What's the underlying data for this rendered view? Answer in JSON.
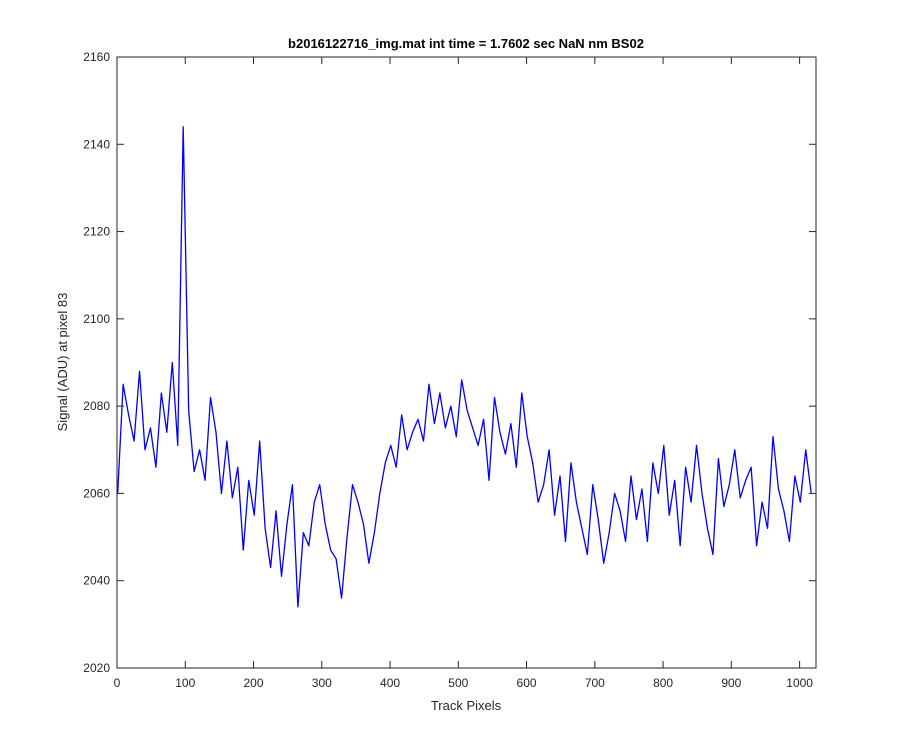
{
  "chart_data": {
    "type": "line",
    "title": "b2016122716_img.mat int time = 1.7602 sec  NaN nm BS02",
    "xlabel": "Track Pixels",
    "ylabel": "Signal (ADU) at pixel 83",
    "xlim": [
      0,
      1024
    ],
    "ylim": [
      2020,
      2160
    ],
    "x_ticks": [
      0,
      100,
      200,
      300,
      400,
      500,
      600,
      700,
      800,
      900,
      1000
    ],
    "y_ticks": [
      2020,
      2040,
      2060,
      2080,
      2100,
      2120,
      2140,
      2160
    ],
    "grid": false,
    "line_color": "#0000ff",
    "series": [
      {
        "x_start": 1,
        "x_step": 8,
        "values": [
          2060,
          2085,
          2078,
          2072,
          2088,
          2070,
          2075,
          2066,
          2083,
          2074,
          2090,
          2071,
          2144,
          2079,
          2065,
          2070,
          2063,
          2082,
          2074,
          2060,
          2072,
          2059,
          2066,
          2047,
          2063,
          2055,
          2072,
          2052,
          2043,
          2056,
          2041,
          2053,
          2062,
          2034,
          2051,
          2048,
          2058,
          2062,
          2053,
          2047,
          2045,
          2036,
          2050,
          2062,
          2058,
          2053,
          2044,
          2051,
          2060,
          2067,
          2071,
          2066,
          2078,
          2070,
          2074,
          2077,
          2072,
          2085,
          2076,
          2083,
          2075,
          2080,
          2073,
          2086,
          2079,
          2075,
          2071,
          2077,
          2063,
          2082,
          2074,
          2069,
          2076,
          2066,
          2083,
          2073,
          2067,
          2058,
          2062,
          2070,
          2055,
          2064,
          2049,
          2067,
          2058,
          2052,
          2046,
          2062,
          2054,
          2044,
          2051,
          2060,
          2056,
          2049,
          2064,
          2054,
          2061,
          2049,
          2067,
          2060,
          2071,
          2055,
          2063,
          2048,
          2066,
          2058,
          2071,
          2060,
          2052,
          2046,
          2068,
          2057,
          2062,
          2070,
          2059,
          2063,
          2066,
          2048,
          2058,
          2052,
          2073,
          2061,
          2056,
          2049,
          2064,
          2058,
          2070,
          2060
        ]
      }
    ]
  }
}
